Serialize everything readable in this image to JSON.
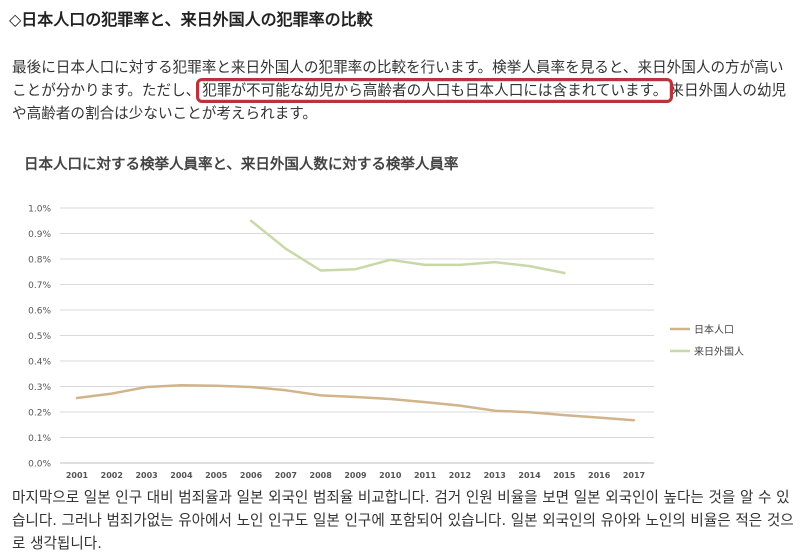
{
  "heading": "◇日本人口の犯罪率と、来日外国人の犯罪率の比較",
  "paragraph1": {
    "before": "最後に日本人口に対する犯罪率と来日外国人の犯罪率の比較を行います。検挙人員率を見ると、来日外国人の方が高いことが分かります。ただし、",
    "highlight": "犯罪が不可能な幼児から高齢者の人口も日本人口には含まれています。",
    "after": "来日外国人の幼児や高齢者の割合は少ないことが考えられます。",
    "highlight_color": "#b8333c"
  },
  "chart_data": {
    "type": "line",
    "title": "日本人口に対する検挙人員率と、来日外国人数に対する検挙人員率",
    "x": [
      "2001",
      "2002",
      "2003",
      "2004",
      "2005",
      "2006",
      "2007",
      "2008",
      "2009",
      "2010",
      "2011",
      "2012",
      "2013",
      "2014",
      "2015",
      "2016",
      "2017"
    ],
    "ylim": [
      0,
      1.0
    ],
    "yticks": [
      "0.0%",
      "0.1%",
      "0.2%",
      "0.3%",
      "0.4%",
      "0.5%",
      "0.6%",
      "0.7%",
      "0.8%",
      "0.9%",
      "1.0%"
    ],
    "grid": true,
    "legend_position": "right",
    "series": [
      {
        "name": "日本人口",
        "color": "#d2b48c",
        "values": [
          0.255,
          0.272,
          0.298,
          0.305,
          0.303,
          0.298,
          0.285,
          0.265,
          0.259,
          0.251,
          0.239,
          0.225,
          0.205,
          0.199,
          0.188,
          0.178,
          0.168
        ]
      },
      {
        "name": "来日外国人",
        "color": "#c8d9a8",
        "values": [
          null,
          null,
          null,
          null,
          null,
          0.95,
          0.84,
          0.755,
          0.76,
          0.797,
          0.777,
          0.777,
          0.788,
          0.772,
          0.745,
          null,
          null
        ]
      }
    ]
  },
  "paragraph2": "마지막으로 일본 인구 대비 범죄율과 일본 외국인 범죄율 비교합니다. 검거 인원 비율을 보면 일본 외국인이 높다는 것을 알 수 있습니다. 그러나 범죄가없는 유아에서 노인 인구도 일본 인구에 포함되어 있습니다. 일본 외국인의 유아와 노인의 비율은 적은 것으로 생각됩니다."
}
